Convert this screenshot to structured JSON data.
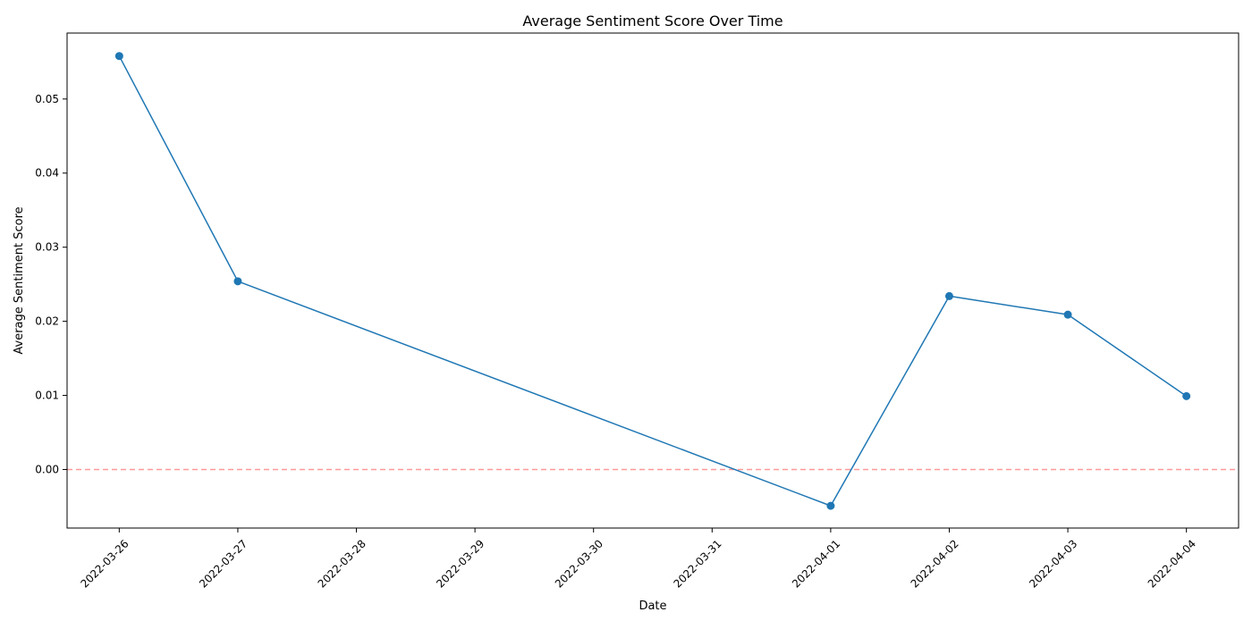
{
  "chart_data": {
    "type": "line",
    "title": "Average Sentiment Score Over Time",
    "xlabel": "Date",
    "ylabel": "Average Sentiment Score",
    "x_ticks": [
      "2022-03-26",
      "2022-03-27",
      "2022-03-28",
      "2022-03-29",
      "2022-03-30",
      "2022-03-31",
      "2022-04-01",
      "2022-04-02",
      "2022-04-03",
      "2022-04-04"
    ],
    "y_ticks": [
      "0.00",
      "0.01",
      "0.02",
      "0.03",
      "0.04",
      "0.05"
    ],
    "xlim": [
      "2022-03-25T13:26:24",
      "2022-04-04T10:33:36"
    ],
    "ylim": [
      -0.0079,
      0.0589
    ],
    "grid": false,
    "series": [
      {
        "color": "#1f77b4",
        "marker": "circle",
        "points": [
          {
            "x": "2022-03-26",
            "y": 0.0558
          },
          {
            "x": "2022-03-27",
            "y": 0.0254
          },
          {
            "x": "2022-04-01",
            "y": -0.0049
          },
          {
            "x": "2022-04-02",
            "y": 0.0234
          },
          {
            "x": "2022-04-03",
            "y": 0.0209
          },
          {
            "x": "2022-04-04",
            "y": 0.0099
          }
        ]
      }
    ],
    "reference_line": {
      "y": 0,
      "color": "#ff9999",
      "style": "dashed"
    }
  }
}
